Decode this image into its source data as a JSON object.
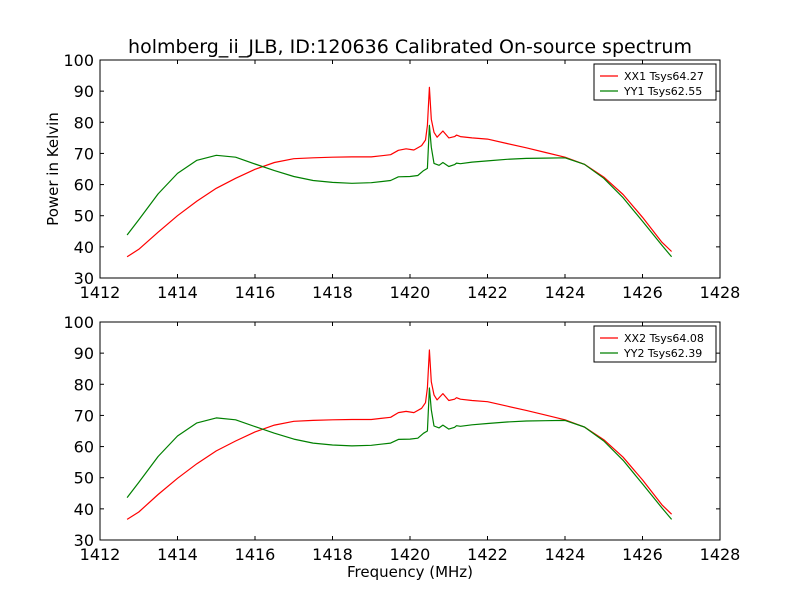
{
  "figure": {
    "title": "holmberg_ii_JLB, ID:120636 Calibrated On-source spectrum",
    "xlabel": "Frequency (MHz)"
  },
  "chart_data": [
    {
      "type": "line",
      "ylabel": "Power in Kelvin",
      "xlim": [
        1412,
        1428
      ],
      "ylim": [
        30,
        100
      ],
      "xticks": [
        1412,
        1414,
        1416,
        1418,
        1420,
        1422,
        1424,
        1426,
        1428
      ],
      "yticks": [
        30,
        40,
        50,
        60,
        70,
        80,
        90,
        100
      ],
      "legend": "top-right",
      "series": [
        {
          "name": "XX1 Tsys64.27",
          "color": "#ff0000",
          "points": [
            [
              1412.7,
              36.8
            ],
            [
              1413.0,
              39.2
            ],
            [
              1413.5,
              44.7
            ],
            [
              1414.0,
              50.0
            ],
            [
              1414.5,
              54.7
            ],
            [
              1415.0,
              58.8
            ],
            [
              1415.5,
              62.0
            ],
            [
              1416.0,
              64.9
            ],
            [
              1416.5,
              67.1
            ],
            [
              1417.0,
              68.3
            ],
            [
              1417.5,
              68.6
            ],
            [
              1418.0,
              68.8
            ],
            [
              1418.5,
              68.9
            ],
            [
              1419.0,
              68.9
            ],
            [
              1419.5,
              69.6
            ],
            [
              1419.7,
              71.0
            ],
            [
              1419.9,
              71.5
            ],
            [
              1420.1,
              71.1
            ],
            [
              1420.3,
              72.5
            ],
            [
              1420.4,
              74.3
            ],
            [
              1420.45,
              79.0
            ],
            [
              1420.5,
              91.2
            ],
            [
              1420.55,
              81.0
            ],
            [
              1420.62,
              76.8
            ],
            [
              1420.7,
              75.2
            ],
            [
              1420.85,
              77.2
            ],
            [
              1421.0,
              75.0
            ],
            [
              1421.15,
              75.4
            ],
            [
              1421.2,
              75.9
            ],
            [
              1421.3,
              75.4
            ],
            [
              1421.6,
              75.0
            ],
            [
              1422.0,
              74.6
            ],
            [
              1422.5,
              73.2
            ],
            [
              1423.0,
              71.8
            ],
            [
              1423.5,
              70.3
            ],
            [
              1424.0,
              68.8
            ],
            [
              1424.5,
              66.5
            ],
            [
              1425.0,
              62.4
            ],
            [
              1425.5,
              56.8
            ],
            [
              1426.0,
              49.5
            ],
            [
              1426.5,
              41.5
            ],
            [
              1426.75,
              38.5
            ]
          ]
        },
        {
          "name": "YY1 Tsys62.55",
          "color": "#008000",
          "points": [
            [
              1412.7,
              43.8
            ],
            [
              1413.0,
              48.7
            ],
            [
              1413.5,
              57.0
            ],
            [
              1414.0,
              63.6
            ],
            [
              1414.5,
              67.8
            ],
            [
              1415.0,
              69.4
            ],
            [
              1415.5,
              68.8
            ],
            [
              1416.0,
              66.6
            ],
            [
              1416.5,
              64.5
            ],
            [
              1417.0,
              62.6
            ],
            [
              1417.5,
              61.3
            ],
            [
              1418.0,
              60.7
            ],
            [
              1418.5,
              60.4
            ],
            [
              1419.0,
              60.6
            ],
            [
              1419.5,
              61.3
            ],
            [
              1419.7,
              62.5
            ],
            [
              1420.0,
              62.6
            ],
            [
              1420.2,
              62.9
            ],
            [
              1420.35,
              64.5
            ],
            [
              1420.45,
              65.2
            ],
            [
              1420.5,
              79.0
            ],
            [
              1420.55,
              72.0
            ],
            [
              1420.62,
              66.8
            ],
            [
              1420.75,
              66.2
            ],
            [
              1420.85,
              67.1
            ],
            [
              1421.0,
              65.8
            ],
            [
              1421.15,
              66.4
            ],
            [
              1421.2,
              66.9
            ],
            [
              1421.3,
              66.7
            ],
            [
              1421.6,
              67.2
            ],
            [
              1422.0,
              67.6
            ],
            [
              1422.5,
              68.1
            ],
            [
              1423.0,
              68.4
            ],
            [
              1423.5,
              68.5
            ],
            [
              1424.0,
              68.6
            ],
            [
              1424.5,
              66.5
            ],
            [
              1425.0,
              62.0
            ],
            [
              1425.5,
              55.8
            ],
            [
              1426.0,
              48.2
            ],
            [
              1426.5,
              40.5
            ],
            [
              1426.75,
              36.8
            ]
          ]
        }
      ]
    },
    {
      "type": "line",
      "ylabel": "",
      "xlim": [
        1412,
        1428
      ],
      "ylim": [
        30,
        100
      ],
      "xticks": [
        1412,
        1414,
        1416,
        1418,
        1420,
        1422,
        1424,
        1426,
        1428
      ],
      "yticks": [
        30,
        40,
        50,
        60,
        70,
        80,
        90,
        100
      ],
      "legend": "top-right",
      "series": [
        {
          "name": "XX2 Tsys64.08",
          "color": "#ff0000",
          "points": [
            [
              1412.7,
              36.6
            ],
            [
              1413.0,
              39.0
            ],
            [
              1413.5,
              44.6
            ],
            [
              1414.0,
              49.8
            ],
            [
              1414.5,
              54.5
            ],
            [
              1415.0,
              58.6
            ],
            [
              1415.5,
              61.8
            ],
            [
              1416.0,
              64.7
            ],
            [
              1416.5,
              66.9
            ],
            [
              1417.0,
              68.1
            ],
            [
              1417.5,
              68.4
            ],
            [
              1418.0,
              68.6
            ],
            [
              1418.5,
              68.7
            ],
            [
              1419.0,
              68.7
            ],
            [
              1419.5,
              69.4
            ],
            [
              1419.7,
              70.9
            ],
            [
              1419.9,
              71.3
            ],
            [
              1420.1,
              70.9
            ],
            [
              1420.3,
              72.3
            ],
            [
              1420.4,
              74.1
            ],
            [
              1420.45,
              78.8
            ],
            [
              1420.5,
              91.0
            ],
            [
              1420.55,
              80.8
            ],
            [
              1420.62,
              76.6
            ],
            [
              1420.7,
              75.0
            ],
            [
              1420.85,
              77.0
            ],
            [
              1421.0,
              74.8
            ],
            [
              1421.15,
              75.2
            ],
            [
              1421.2,
              75.7
            ],
            [
              1421.3,
              75.2
            ],
            [
              1421.6,
              74.8
            ],
            [
              1422.0,
              74.4
            ],
            [
              1422.5,
              73.0
            ],
            [
              1423.0,
              71.6
            ],
            [
              1423.5,
              70.1
            ],
            [
              1424.0,
              68.6
            ],
            [
              1424.5,
              66.3
            ],
            [
              1425.0,
              62.2
            ],
            [
              1425.5,
              56.6
            ],
            [
              1426.0,
              49.3
            ],
            [
              1426.5,
              41.3
            ],
            [
              1426.75,
              38.3
            ]
          ]
        },
        {
          "name": "YY2 Tsys62.39",
          "color": "#008000",
          "points": [
            [
              1412.7,
              43.6
            ],
            [
              1413.0,
              48.5
            ],
            [
              1413.5,
              56.8
            ],
            [
              1414.0,
              63.4
            ],
            [
              1414.5,
              67.6
            ],
            [
              1415.0,
              69.2
            ],
            [
              1415.5,
              68.6
            ],
            [
              1416.0,
              66.4
            ],
            [
              1416.5,
              64.3
            ],
            [
              1417.0,
              62.4
            ],
            [
              1417.5,
              61.1
            ],
            [
              1418.0,
              60.5
            ],
            [
              1418.5,
              60.2
            ],
            [
              1419.0,
              60.4
            ],
            [
              1419.5,
              61.1
            ],
            [
              1419.7,
              62.3
            ],
            [
              1420.0,
              62.4
            ],
            [
              1420.2,
              62.7
            ],
            [
              1420.35,
              64.3
            ],
            [
              1420.45,
              65.0
            ],
            [
              1420.5,
              78.8
            ],
            [
              1420.55,
              71.8
            ],
            [
              1420.62,
              66.6
            ],
            [
              1420.75,
              66.0
            ],
            [
              1420.85,
              66.9
            ],
            [
              1421.0,
              65.6
            ],
            [
              1421.15,
              66.2
            ],
            [
              1421.2,
              66.7
            ],
            [
              1421.3,
              66.5
            ],
            [
              1421.6,
              67.0
            ],
            [
              1422.0,
              67.4
            ],
            [
              1422.5,
              67.9
            ],
            [
              1423.0,
              68.2
            ],
            [
              1423.5,
              68.3
            ],
            [
              1424.0,
              68.4
            ],
            [
              1424.5,
              66.3
            ],
            [
              1425.0,
              61.8
            ],
            [
              1425.5,
              55.6
            ],
            [
              1426.0,
              48.0
            ],
            [
              1426.5,
              40.3
            ],
            [
              1426.75,
              36.6
            ]
          ]
        }
      ]
    }
  ]
}
